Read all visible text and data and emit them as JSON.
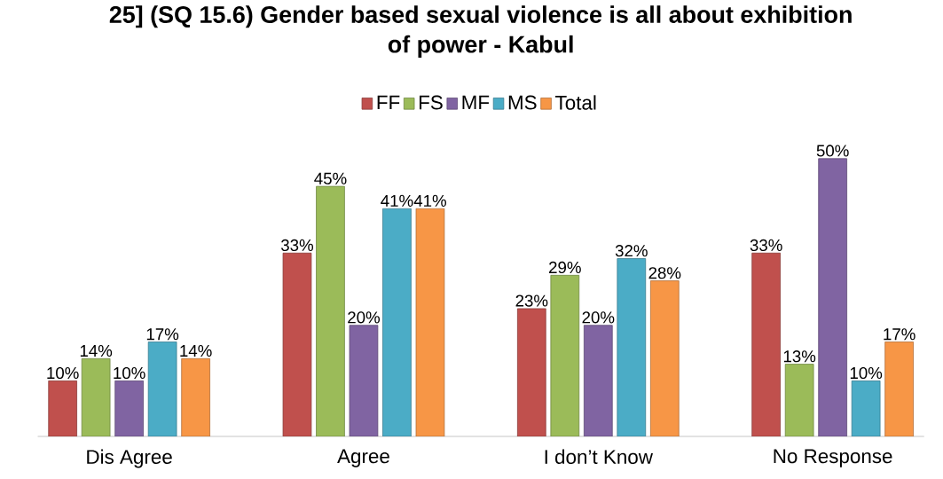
{
  "chart_data": {
    "type": "bar",
    "title": "25] (SQ 15.6) Gender based sexual violence is all about exhibition of power - Kabul",
    "categories": [
      "Dis Agree",
      "Agree",
      "I don’t Know",
      "No Response"
    ],
    "legend": "top",
    "series": [
      {
        "name": "FF",
        "color": "#c0504d",
        "values": [
          10,
          33,
          23,
          33
        ],
        "value_labels": [
          "10%",
          "33%",
          "23%",
          "33%"
        ]
      },
      {
        "name": "FS",
        "color": "#9bbb59",
        "values": [
          14,
          45,
          29,
          13
        ],
        "value_labels": [
          "14%",
          "45%",
          "29%",
          "13%"
        ]
      },
      {
        "name": "MF",
        "color": "#8064a2",
        "values": [
          10,
          20,
          20,
          50
        ],
        "value_labels": [
          "10%",
          "20%",
          "20%",
          "50%"
        ]
      },
      {
        "name": "MS",
        "color": "#4bacc6",
        "values": [
          17,
          41,
          32,
          10
        ],
        "value_labels": [
          "17%",
          "41%",
          "32%",
          "10%"
        ]
      },
      {
        "name": "Total",
        "color": "#f79646",
        "values": [
          14,
          41,
          28,
          17
        ],
        "value_labels": [
          "14%",
          "41%",
          "28%",
          "17%"
        ]
      }
    ]
  }
}
